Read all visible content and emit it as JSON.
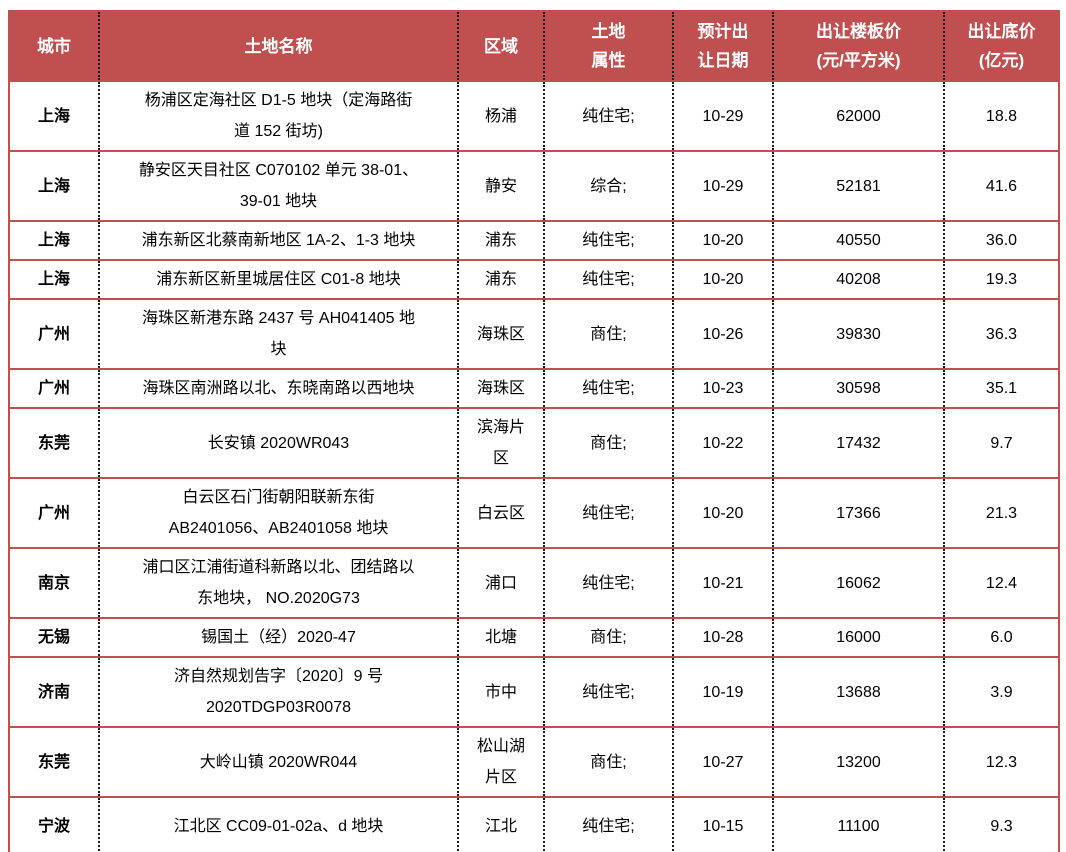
{
  "colors": {
    "header_bg": "#C0504F",
    "header_text": "#FFFFFF",
    "row_border_red": "#C0504F",
    "column_divider_black": "#1A1A1A",
    "body_text": "#000000",
    "page_bg": "#FFFFFF"
  },
  "table": {
    "columns": [
      {
        "label": "城市"
      },
      {
        "label": "土地名称"
      },
      {
        "label": "区域"
      },
      {
        "label": "土地\n属性"
      },
      {
        "label": "预计出\n让日期"
      },
      {
        "label": "出让楼板价\n(元/平方米)"
      },
      {
        "label": "出让底价\n(亿元)"
      }
    ],
    "rows": [
      {
        "city": "上海",
        "name": "杨浦区定海社区 D1-5 地块（定海路街\n道 152 街坊)",
        "district": "杨浦",
        "attribute": "纯住宅;",
        "date": "10-29",
        "floor_price": "62000",
        "base_price": "18.8"
      },
      {
        "city": "上海",
        "name": "静安区天目社区 C070102 单元 38-01、\n39-01 地块",
        "district": "静安",
        "attribute": "综合;",
        "date": "10-29",
        "floor_price": "52181",
        "base_price": "41.6"
      },
      {
        "city": "上海",
        "name": "浦东新区北蔡南新地区 1A-2、1-3 地块",
        "district": "浦东",
        "attribute": "纯住宅;",
        "date": "10-20",
        "floor_price": "40550",
        "base_price": "36.0"
      },
      {
        "city": "上海",
        "name": "浦东新区新里城居住区 C01-8 地块",
        "district": "浦东",
        "attribute": "纯住宅;",
        "date": "10-20",
        "floor_price": "40208",
        "base_price": "19.3"
      },
      {
        "city": "广州",
        "name": "海珠区新港东路 2437 号 AH041405 地\n块",
        "district": "海珠区",
        "attribute": "商住;",
        "date": "10-26",
        "floor_price": "39830",
        "base_price": "36.3"
      },
      {
        "city": "广州",
        "name": "海珠区南洲路以北、东晓南路以西地块",
        "district": "海珠区",
        "attribute": "纯住宅;",
        "date": "10-23",
        "floor_price": "30598",
        "base_price": "35.1"
      },
      {
        "city": "东莞",
        "name": "长安镇 2020WR043",
        "district": "滨海片\n区",
        "attribute": "商住;",
        "date": "10-22",
        "floor_price": "17432",
        "base_price": "9.7"
      },
      {
        "city": "广州",
        "name": "白云区石门街朝阳联新东街\nAB2401056、AB2401058 地块",
        "district": "白云区",
        "attribute": "纯住宅;",
        "date": "10-20",
        "floor_price": "17366",
        "base_price": "21.3"
      },
      {
        "city": "南京",
        "name": "浦口区江浦街道科新路以北、团结路以\n东地块， NO.2020G73",
        "district": "浦口",
        "attribute": "纯住宅;",
        "date": "10-21",
        "floor_price": "16062",
        "base_price": "12.4"
      },
      {
        "city": "无锡",
        "name": "锡国土（经）2020-47",
        "district": "北塘",
        "attribute": "商住;",
        "date": "10-28",
        "floor_price": "16000",
        "base_price": "6.0"
      },
      {
        "city": "济南",
        "name": "济自然规划告字〔2020〕9 号\n2020TDGP03R0078",
        "district": "市中",
        "attribute": "纯住宅;",
        "date": "10-19",
        "floor_price": "13688",
        "base_price": "3.9"
      },
      {
        "city": "东莞",
        "name": "大岭山镇 2020WR044",
        "district": "松山湖\n片区",
        "attribute": "商住;",
        "date": "10-27",
        "floor_price": "13200",
        "base_price": "12.3"
      },
      {
        "city": "宁波",
        "name": "江北区 CC09-01-02a、d 地块",
        "district": "江北",
        "attribute": "纯住宅;",
        "date": "10-15",
        "floor_price": "11100",
        "base_price": "9.3"
      }
    ]
  }
}
